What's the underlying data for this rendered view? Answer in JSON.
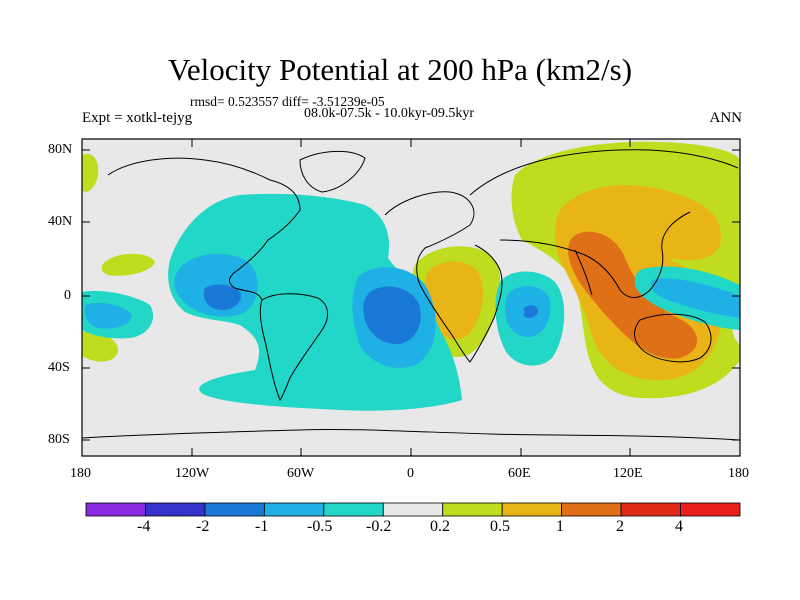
{
  "header": {
    "title": "Velocity Potential at 200 hPa (km2/s)",
    "stats": "rmsd= 0.523557 diff= -3.51239e-05",
    "experiment": "Expt = xotkl-tejyg",
    "period": "08.0k-07.5k - 10.0kyr-09.5kyr",
    "season": "ANN"
  },
  "axes": {
    "y_ticks": [
      "80N",
      "40N",
      "0",
      "40S",
      "80S"
    ],
    "x_ticks": [
      "180",
      "120W",
      "60W",
      "0",
      "60E",
      "120E",
      "180"
    ]
  },
  "colorbar": {
    "labels": [
      "-4",
      "-2",
      "-1",
      "-0.5",
      "-0.2",
      "0.2",
      "0.5",
      "1",
      "2",
      "4"
    ],
    "colors": [
      "#8a2be2",
      "#3333cc",
      "#1a78d6",
      "#1fb0e6",
      "#22d6c8",
      "#e8e8e8",
      "#bfdc1e",
      "#e8b416",
      "#e07018",
      "#e02a18",
      "#e8201c"
    ]
  }
}
